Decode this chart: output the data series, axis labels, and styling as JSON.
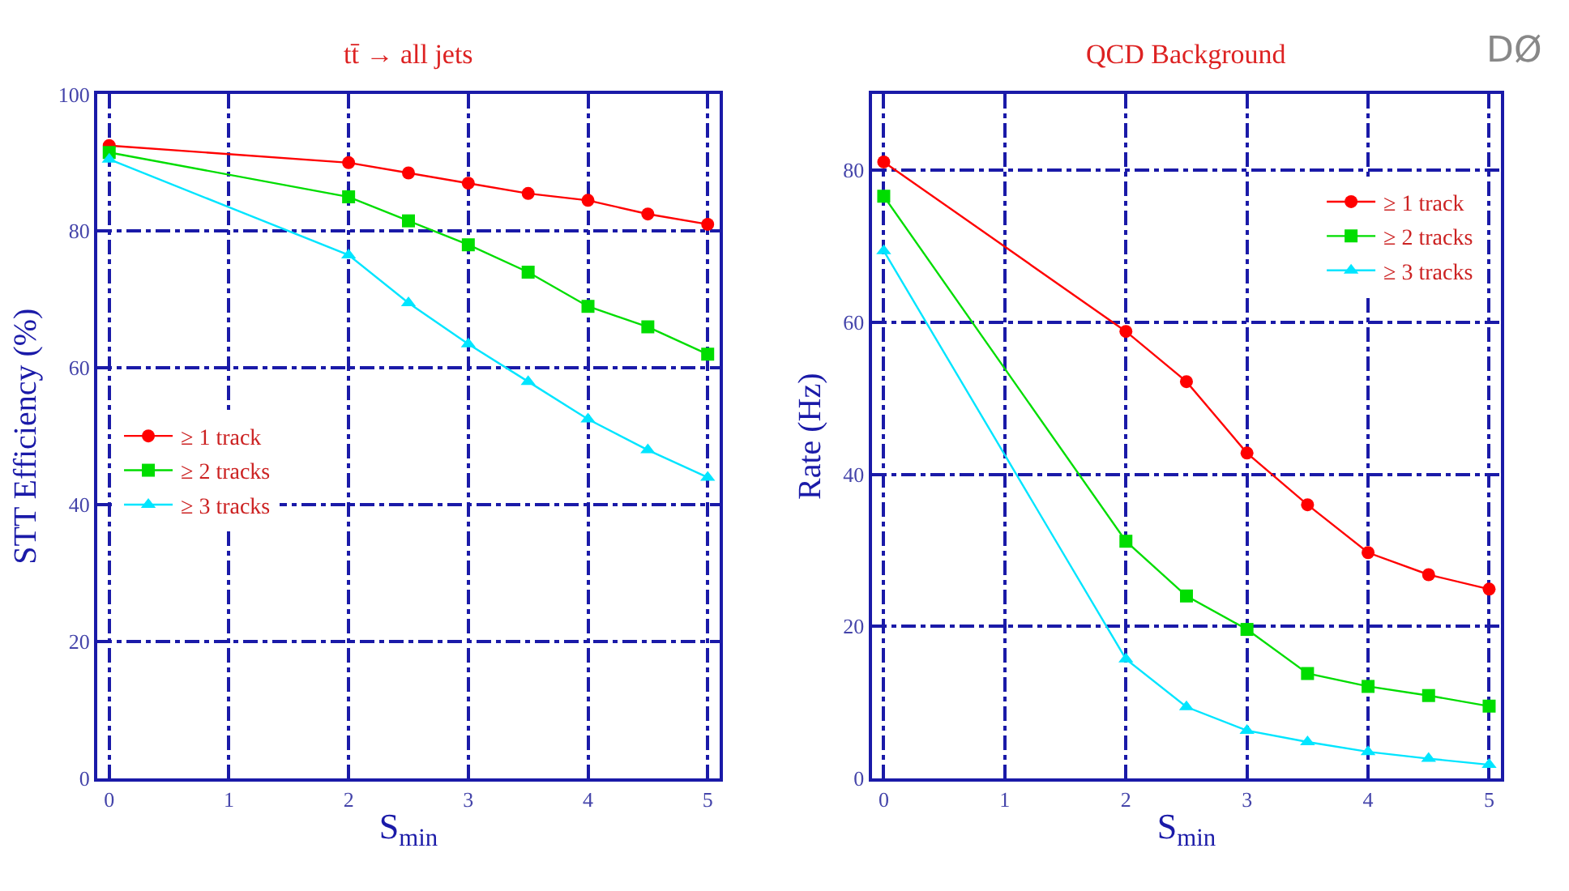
{
  "chart_data": [
    {
      "type": "line",
      "title": "tt̄ → all jets",
      "xlabel": "S$_{min}$",
      "ylabel": "STT Efficiency (%)",
      "x": [
        0,
        2,
        2.5,
        3,
        3.5,
        4,
        4.5,
        5
      ],
      "xlim": [
        -0.1,
        5.1
      ],
      "xticks": [
        0,
        1,
        2,
        3,
        4,
        5
      ],
      "ylim": [
        0,
        100
      ],
      "yticks": [
        0,
        20,
        40,
        60,
        80,
        100
      ],
      "grid": true,
      "legend": "left",
      "line_style": "solid",
      "series": [
        {
          "name": "≥ 1 track",
          "color": "#ff0000",
          "marker": "circle",
          "values": [
            92.5,
            90,
            88.5,
            87,
            85.5,
            84.5,
            82.5,
            81
          ]
        },
        {
          "name": "≥ 2 tracks",
          "color": "#00dd00",
          "marker": "square",
          "values": [
            91.5,
            85,
            81.5,
            78,
            74,
            69,
            66,
            62
          ]
        },
        {
          "name": "≥ 3 tracks",
          "color": "#00e5ff",
          "marker": "triangle",
          "values": [
            90.5,
            76.5,
            69.5,
            63.5,
            58,
            52.5,
            48,
            44
          ]
        }
      ]
    },
    {
      "type": "line",
      "title": "QCD Background",
      "xlabel": "S$_{min}$",
      "ylabel": "Rate (Hz)",
      "x": [
        0,
        2,
        2.5,
        3,
        3.5,
        4,
        4.5,
        5
      ],
      "xlim": [
        -0.1,
        5.1
      ],
      "xticks": [
        0,
        1,
        2,
        3,
        4,
        5
      ],
      "ylim": [
        0,
        90
      ],
      "yticks": [
        0,
        20,
        40,
        60,
        80
      ],
      "grid": true,
      "legend": "top right",
      "line_style": "solid",
      "annotations": [
        "DØ"
      ],
      "series": [
        {
          "name": "≥ 1 track",
          "color": "#ff0000",
          "marker": "circle",
          "values": [
            81.1,
            58.8,
            52.2,
            42.8,
            36,
            29.7,
            26.8,
            24.9
          ]
        },
        {
          "name": "≥ 2 tracks",
          "color": "#00dd00",
          "marker": "square",
          "values": [
            76.6,
            31.2,
            24,
            19.6,
            13.8,
            12.1,
            10.9,
            9.5
          ]
        },
        {
          "name": "≥ 3 tracks",
          "color": "#00e5ff",
          "marker": "triangle",
          "values": [
            69.4,
            15.7,
            9.4,
            6.3,
            4.8,
            3.5,
            2.6,
            1.8
          ]
        }
      ]
    }
  ]
}
